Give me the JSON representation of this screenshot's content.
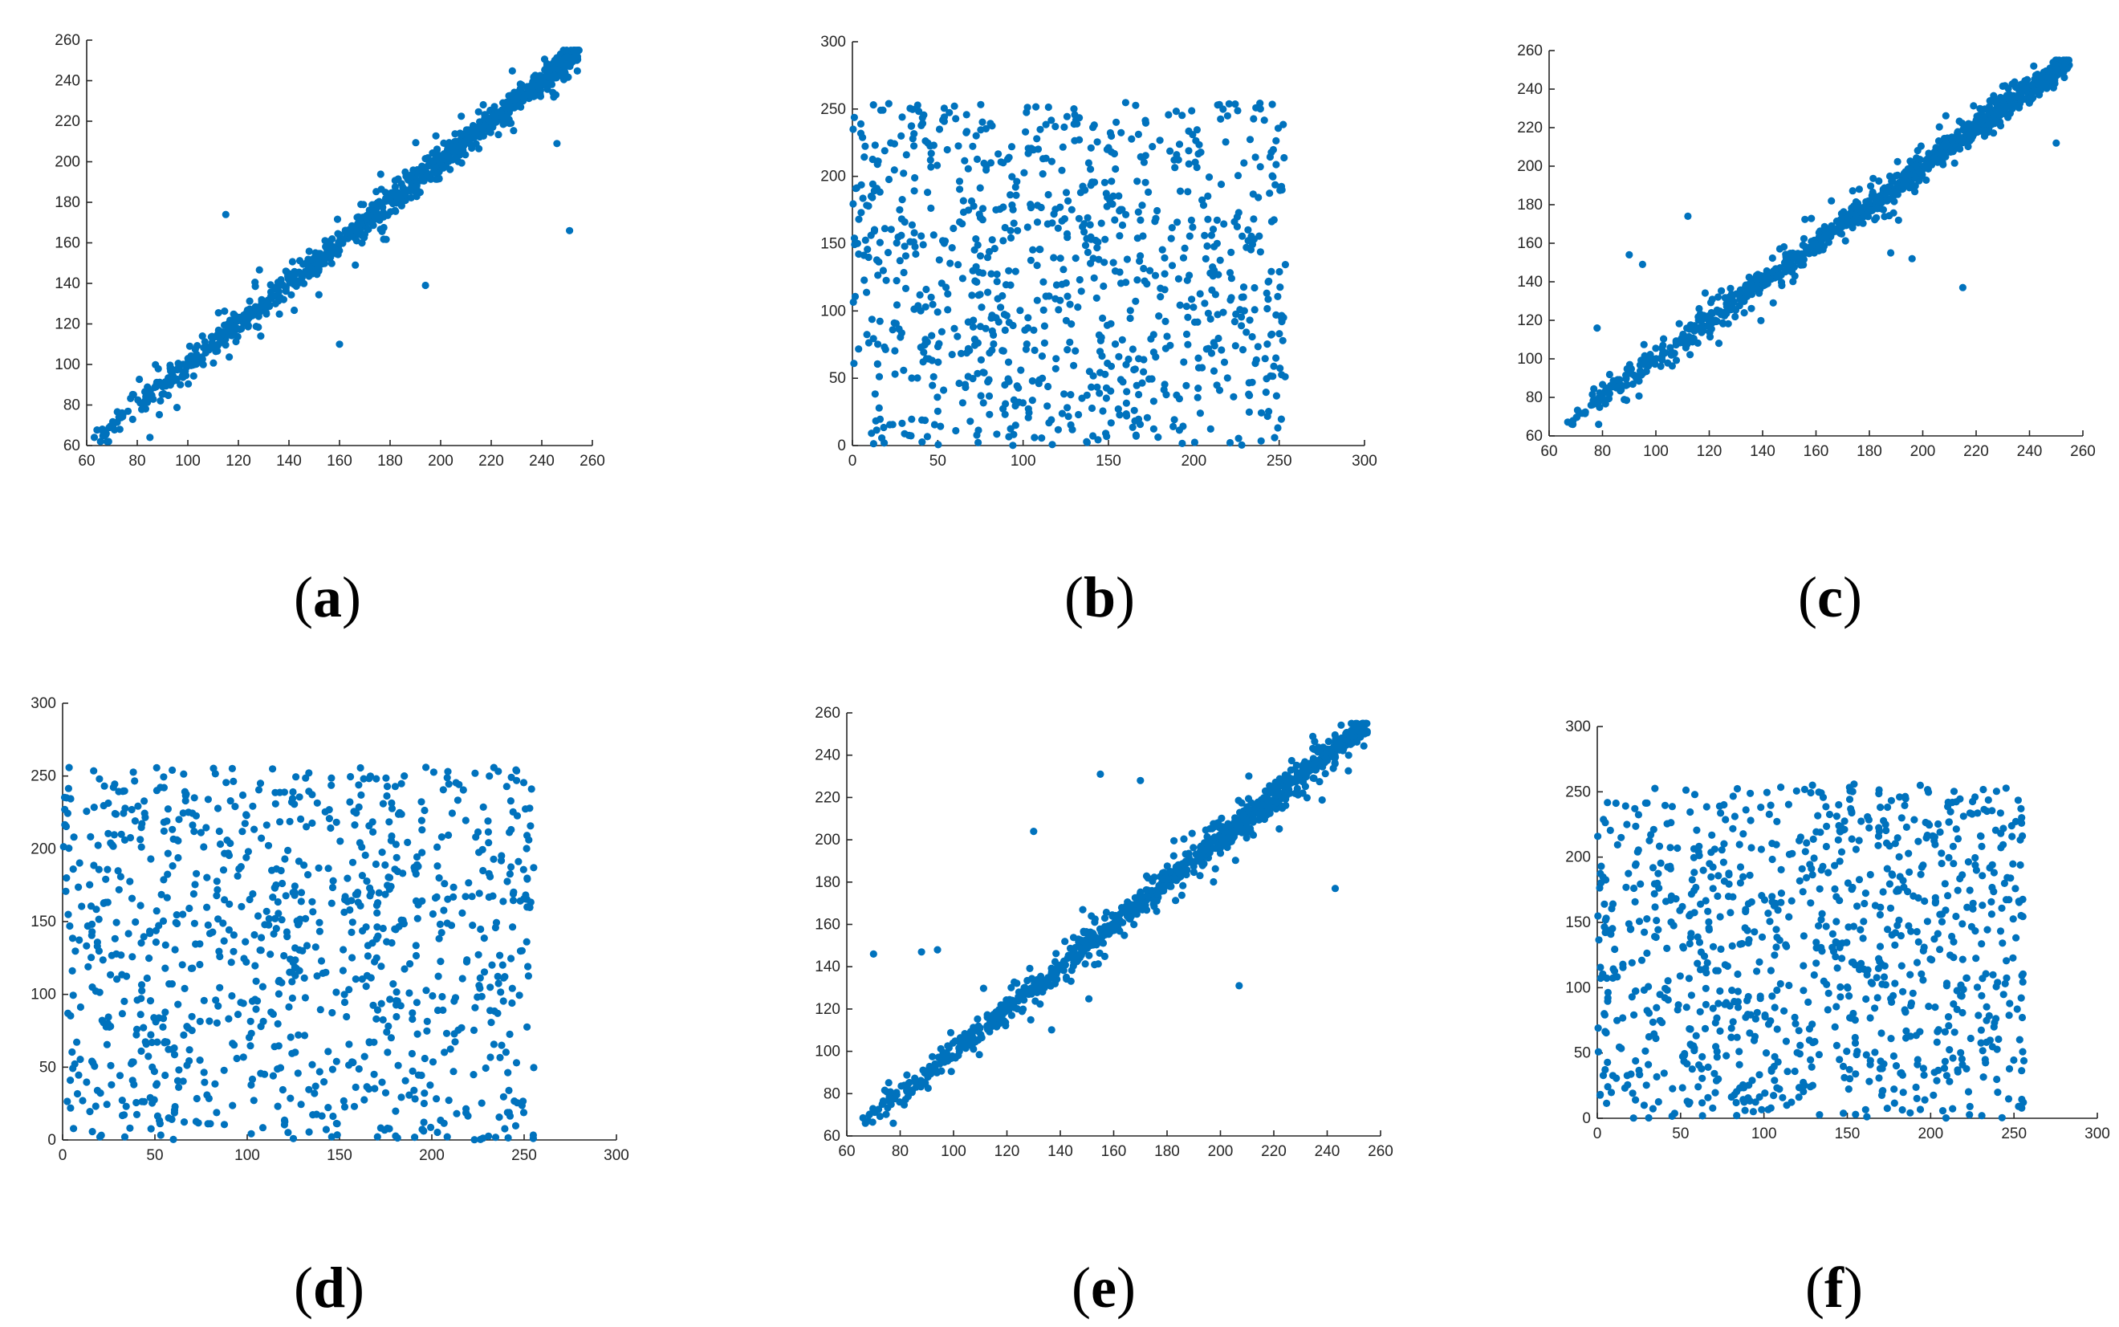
{
  "marker_color": "#0072BD",
  "chart_data": [
    {
      "type": "scatter",
      "panel_label": "a",
      "correlation": "strong",
      "xlim": [
        60,
        260
      ],
      "ylim": [
        60,
        260
      ],
      "xticks": [
        60,
        80,
        100,
        120,
        140,
        160,
        180,
        200,
        220,
        240,
        260
      ],
      "yticks": [
        60,
        80,
        100,
        120,
        140,
        160,
        180,
        200,
        220,
        240,
        260
      ],
      "data_range": [
        62,
        255
      ],
      "points": 1000,
      "outliers": [
        [
          251,
          166
        ],
        [
          194,
          139
        ],
        [
          115,
          174
        ],
        [
          160,
          110
        ],
        [
          85,
          64
        ],
        [
          246,
          209
        ],
        [
          63,
          64
        ]
      ]
    },
    {
      "type": "scatter",
      "panel_label": "b",
      "correlation": "none",
      "xlim": [
        0,
        300
      ],
      "ylim": [
        0,
        300
      ],
      "xticks": [
        0,
        50,
        100,
        150,
        200,
        250,
        300
      ],
      "yticks": [
        0,
        50,
        100,
        150,
        200,
        250,
        300
      ],
      "data_range": [
        0,
        255
      ],
      "points": 900
    },
    {
      "type": "scatter",
      "panel_label": "c",
      "correlation": "strong",
      "xlim": [
        60,
        260
      ],
      "ylim": [
        60,
        260
      ],
      "xticks": [
        60,
        80,
        100,
        120,
        140,
        160,
        180,
        200,
        220,
        240,
        260
      ],
      "yticks": [
        60,
        80,
        100,
        120,
        140,
        160,
        180,
        200,
        220,
        240,
        260
      ],
      "data_range": [
        66,
        255
      ],
      "points": 1000,
      "outliers": [
        [
          90,
          154
        ],
        [
          112,
          174
        ],
        [
          188,
          155
        ],
        [
          196,
          152
        ],
        [
          215,
          137
        ],
        [
          250,
          212
        ],
        [
          95,
          149
        ],
        [
          78,
          116
        ]
      ]
    },
    {
      "type": "scatter",
      "panel_label": "d",
      "correlation": "none",
      "xlim": [
        0,
        300
      ],
      "ylim": [
        0,
        300
      ],
      "xticks": [
        0,
        50,
        100,
        150,
        200,
        250,
        300
      ],
      "yticks": [
        0,
        50,
        100,
        150,
        200,
        250,
        300
      ],
      "data_range": [
        0,
        256
      ],
      "points": 950
    },
    {
      "type": "scatter",
      "panel_label": "e",
      "correlation": "strong",
      "xlim": [
        60,
        260
      ],
      "ylim": [
        60,
        260
      ],
      "xticks": [
        60,
        80,
        100,
        120,
        140,
        160,
        180,
        200,
        220,
        240,
        260
      ],
      "yticks": [
        60,
        80,
        100,
        120,
        140,
        160,
        180,
        200,
        220,
        240,
        260
      ],
      "data_range": [
        66,
        255
      ],
      "points": 1000,
      "outliers": [
        [
          155,
          231
        ],
        [
          130,
          204
        ],
        [
          207,
          131
        ],
        [
          243,
          177
        ],
        [
          70,
          146
        ],
        [
          88,
          147
        ],
        [
          94,
          148
        ],
        [
          170,
          228
        ]
      ]
    },
    {
      "type": "scatter",
      "panel_label": "f",
      "correlation": "none",
      "xlim": [
        0,
        300
      ],
      "ylim": [
        0,
        300
      ],
      "xticks": [
        0,
        50,
        100,
        150,
        200,
        250,
        300
      ],
      "yticks": [
        0,
        50,
        100,
        150,
        200,
        250,
        300
      ],
      "data_range": [
        0,
        256
      ],
      "points": 950
    }
  ]
}
